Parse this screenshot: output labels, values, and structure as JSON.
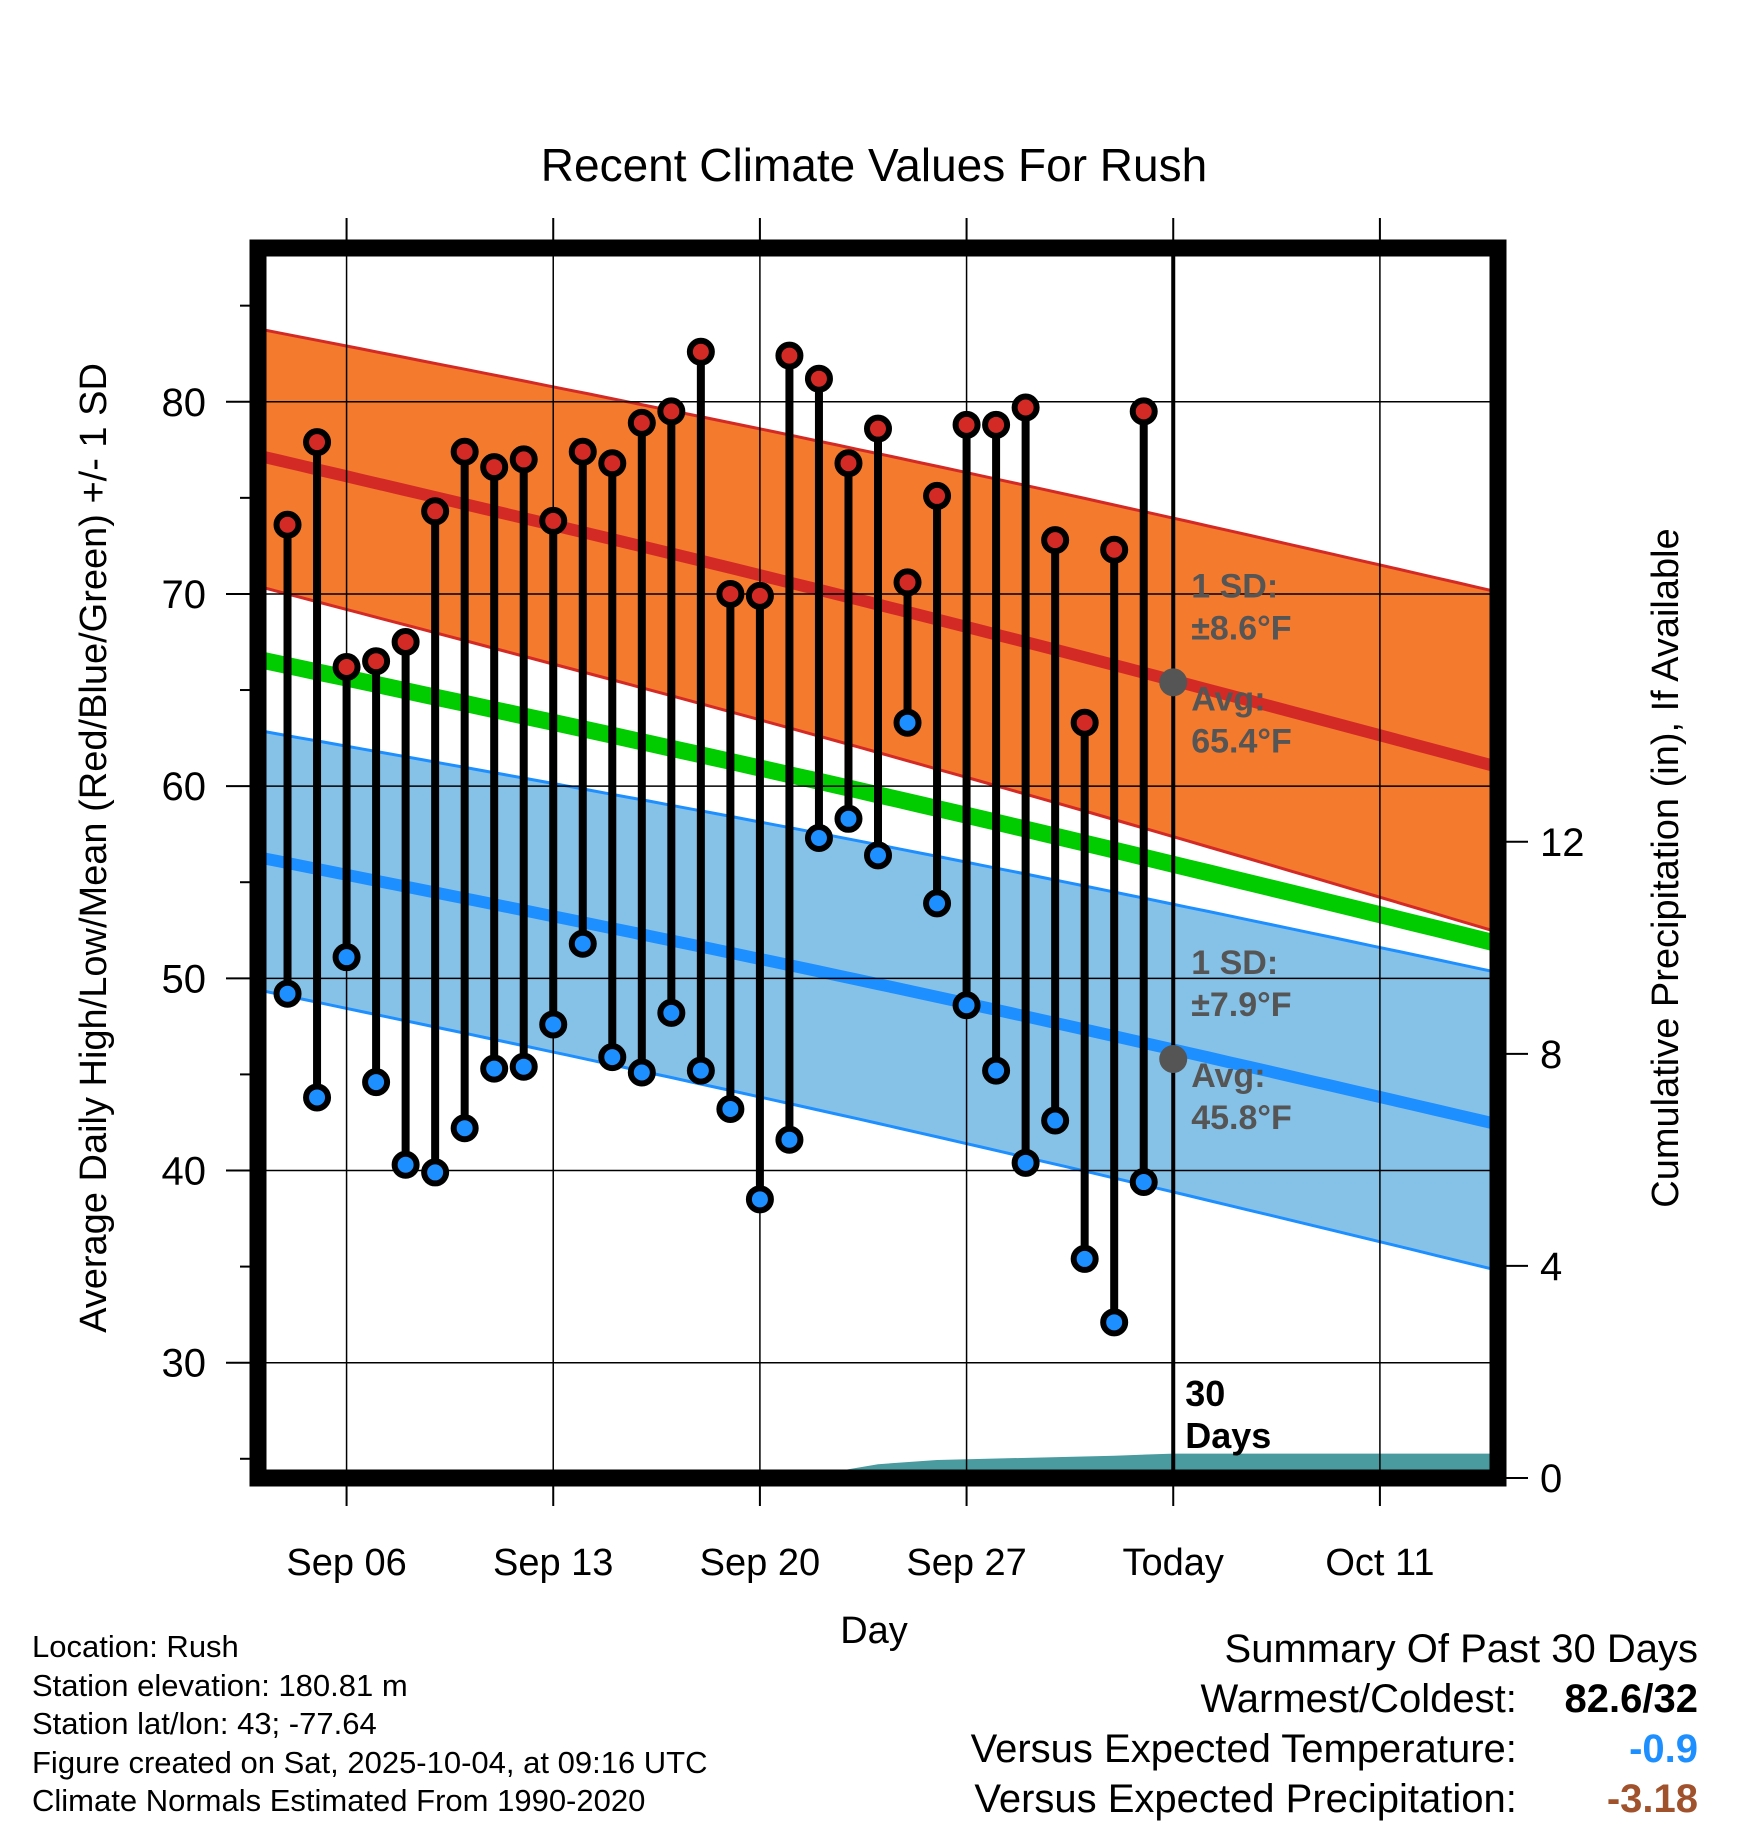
{
  "colors": {
    "high_band": "#F47A2E",
    "high_band_edge": "#D42A25",
    "high_mean": "#D42A25",
    "low_band": "#86C2E7",
    "low_band_edge": "#1E8FFF",
    "low_mean": "#1E8FFF",
    "mean_line": "#00CC00",
    "precip": "#4A9BA0",
    "high_dot": "#D42A25",
    "low_dot": "#1E8FFF",
    "avg_marker": "#555555",
    "annotation": "#555555",
    "temp_anomaly": "#1E8FFF",
    "precip_anomaly": "#A0522D"
  },
  "chart_data": {
    "type": "line",
    "title": "Recent Climate Values For Rush",
    "xlabel": "Day",
    "ylabel": "Average Daily High/Low/Mean (Red/Blue/Green) +/- 1 SD",
    "y2label": "Cumulative Precipitation (in), If Available",
    "xlim": [
      1,
      43
    ],
    "ylim": [
      24,
      88
    ],
    "y2lim": [
      0,
      23.2
    ],
    "yticks": [
      30,
      40,
      50,
      60,
      70,
      80
    ],
    "y2ticks": [
      0,
      4,
      8,
      12
    ],
    "xticks": [
      {
        "x": 4,
        "label": "Sep 06"
      },
      {
        "x": 11,
        "label": "Sep 13"
      },
      {
        "x": 18,
        "label": "Sep 20"
      },
      {
        "x": 25,
        "label": "Sep 27"
      },
      {
        "x": 32,
        "label": "Today"
      },
      {
        "x": 39,
        "label": "Oct 11"
      }
    ],
    "today_x": 32,
    "today_label": "30\nDays",
    "normals": {
      "x": [
        1,
        43
      ],
      "high_mean": [
        77.2,
        61.0
      ],
      "high_upper": [
        83.8,
        70.1
      ],
      "high_lower": [
        70.4,
        52.4
      ],
      "low_mean": [
        56.3,
        42.4
      ],
      "low_upper": [
        62.9,
        50.3
      ],
      "low_lower": [
        49.4,
        34.8
      ],
      "mean": [
        66.6,
        51.8
      ]
    },
    "observed": {
      "x": [
        2,
        3,
        4,
        5,
        6,
        7,
        8,
        9,
        10,
        11,
        12,
        13,
        14,
        15,
        16,
        17,
        18,
        19,
        20,
        21,
        22,
        23,
        24,
        25,
        26,
        27,
        28,
        29,
        30,
        31
      ],
      "high": [
        73.6,
        77.9,
        66.2,
        66.5,
        67.5,
        74.3,
        77.4,
        76.6,
        77.0,
        73.8,
        77.4,
        76.8,
        78.9,
        79.5,
        82.6,
        70.0,
        69.9,
        82.4,
        81.2,
        76.8,
        78.6,
        70.6,
        75.1,
        78.8,
        78.8,
        79.7,
        72.8,
        63.3,
        72.3,
        79.5
      ],
      "low": [
        49.2,
        43.8,
        51.1,
        44.6,
        40.3,
        39.9,
        42.2,
        45.3,
        45.4,
        47.6,
        51.8,
        45.9,
        45.1,
        48.2,
        45.2,
        43.2,
        38.5,
        41.6,
        57.3,
        58.3,
        56.4,
        63.3,
        53.9,
        48.6,
        45.2,
        40.4,
        42.6,
        35.4,
        32.1,
        39.4
      ]
    },
    "precip_cumulative": {
      "x": [
        1,
        4,
        18,
        20,
        22,
        24,
        30,
        32,
        43
      ],
      "values": [
        0.0,
        0.05,
        0.05,
        0.07,
        0.26,
        0.34,
        0.42,
        0.46,
        0.46
      ]
    },
    "annotations": {
      "high_sd_label": "1 SD:",
      "high_sd_value": "±8.6°F",
      "high_avg_label": "Avg:",
      "high_avg_value": "65.4°F",
      "high_avg_marker": 65.4,
      "low_sd_label": "1 SD:",
      "low_sd_value": "±7.9°F",
      "low_avg_label": "Avg:",
      "low_avg_value": "45.8°F",
      "low_avg_marker": 45.8
    }
  },
  "footer": {
    "location": "Location: Rush",
    "elevation": "Station elevation: 180.81 m",
    "latlon": "Station lat/lon: 43; -77.64",
    "created": "Figure created on Sat, 2025-10-04, at 09:16 UTC",
    "normals": "Climate Normals Estimated From 1990-2020"
  },
  "summary": {
    "title": "Summary Of Past 30 Days",
    "warmest_coldest_label": "Warmest/Coldest:",
    "warmest_coldest_value": "82.6/32",
    "temp_label": "Versus Expected Temperature:",
    "temp_value": "-0.9",
    "precip_label": "Versus Expected Precipitation:",
    "precip_value": "-3.18"
  }
}
